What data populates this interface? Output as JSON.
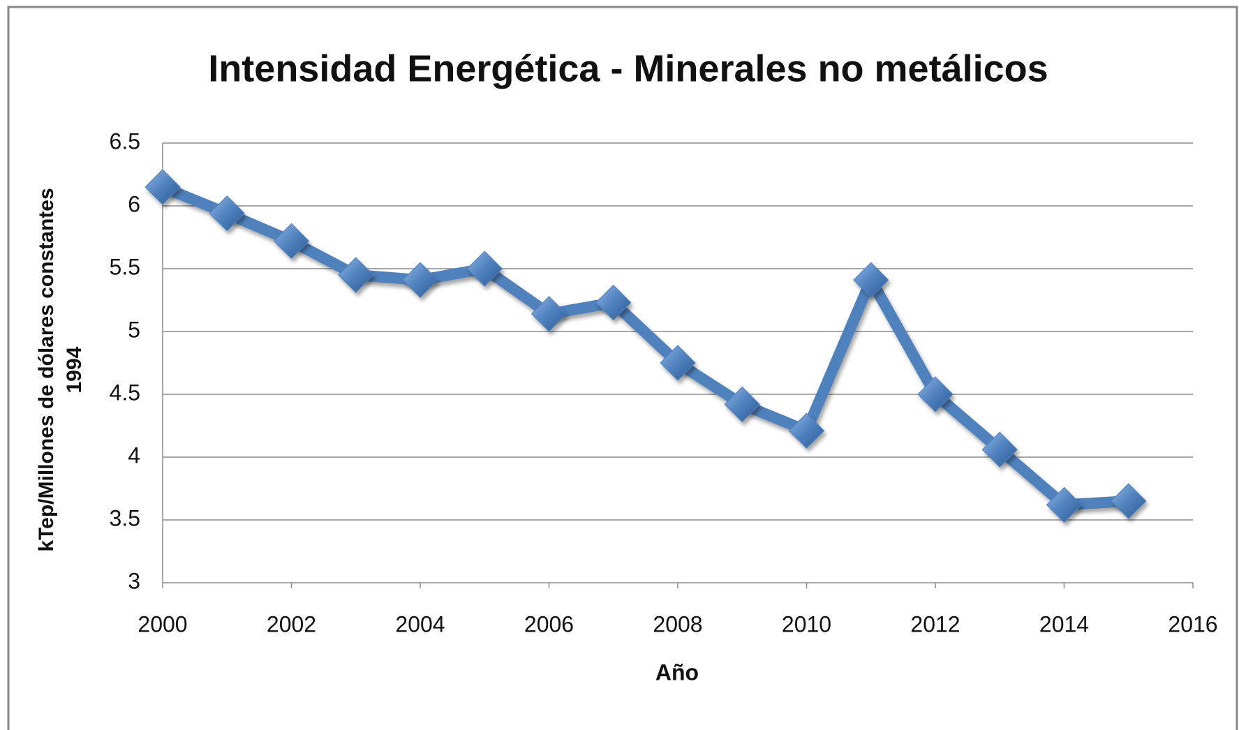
{
  "chart_data": {
    "type": "line",
    "title": "Intensidad Energética - Minerales no metálicos",
    "xlabel": "Año",
    "ylabel": [
      "kTep/Millones de dólares constantes",
      "1994"
    ],
    "x": [
      2000,
      2001,
      2002,
      2003,
      2004,
      2005,
      2006,
      2007,
      2008,
      2009,
      2010,
      2011,
      2012,
      2013,
      2014,
      2015
    ],
    "series": [
      {
        "color": "#4f81bd",
        "values": [
          6.15,
          5.94,
          5.72,
          5.45,
          5.41,
          5.5,
          5.14,
          5.23,
          4.75,
          4.42,
          4.21,
          5.41,
          4.5,
          4.06,
          3.62,
          3.65
        ]
      }
    ],
    "xlim": [
      2000,
      2016
    ],
    "xticks": [
      2000,
      2002,
      2004,
      2006,
      2008,
      2010,
      2012,
      2014,
      2016
    ],
    "ylim": [
      3,
      6.5
    ],
    "yticks": [
      3,
      3.5,
      4,
      4.5,
      5,
      5.5,
      6,
      6.5
    ],
    "grid": true
  }
}
